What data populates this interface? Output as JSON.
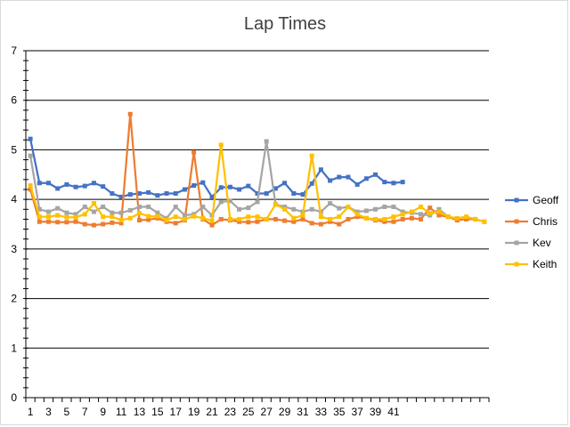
{
  "chart_data": {
    "type": "line",
    "title": "Lap Times",
    "xlabel": "",
    "ylabel": "",
    "ylim": [
      0,
      7
    ],
    "y_ticks": [
      0,
      1,
      2,
      3,
      4,
      5,
      6,
      7
    ],
    "x_range": [
      1,
      51
    ],
    "x_tick_labels": [
      1,
      3,
      5,
      7,
      9,
      11,
      13,
      15,
      17,
      19,
      21,
      23,
      25,
      27,
      29,
      31,
      33,
      35,
      37,
      39,
      41
    ],
    "grid": "horizontal",
    "legend_position": "right",
    "series": [
      {
        "name": "Geoff",
        "color": "#4472C4",
        "marker": "square",
        "x": [
          1,
          2,
          3,
          4,
          5,
          6,
          7,
          8,
          9,
          10,
          11,
          12,
          13,
          14,
          15,
          16,
          17,
          18,
          19,
          20,
          21,
          22,
          23,
          24,
          25,
          26,
          27,
          28,
          29,
          30,
          31,
          32,
          33,
          34,
          35,
          36,
          37,
          38,
          39,
          40,
          41,
          42
        ],
        "values": [
          5.22,
          4.33,
          4.33,
          4.22,
          4.3,
          4.25,
          4.27,
          4.33,
          4.26,
          4.12,
          4.05,
          4.1,
          4.12,
          4.14,
          4.08,
          4.12,
          4.12,
          4.2,
          4.28,
          4.34,
          4.05,
          4.24,
          4.25,
          4.2,
          4.27,
          4.12,
          4.12,
          4.22,
          4.33,
          4.12,
          4.1,
          4.32,
          4.6,
          4.38,
          4.45,
          4.45,
          4.3,
          4.42,
          4.5,
          4.35,
          4.33,
          4.35
        ]
      },
      {
        "name": "Chris",
        "color": "#ED7D31",
        "marker": "square",
        "x": [
          1,
          2,
          3,
          4,
          5,
          6,
          7,
          8,
          9,
          10,
          11,
          12,
          13,
          14,
          15,
          16,
          17,
          18,
          19,
          20,
          21,
          22,
          23,
          24,
          25,
          26,
          27,
          28,
          29,
          30,
          31,
          32,
          33,
          34,
          35,
          36,
          37,
          38,
          39,
          40,
          41,
          42,
          43,
          44,
          45,
          46,
          47,
          48,
          49,
          50,
          51
        ],
        "values": [
          4.2,
          3.55,
          3.55,
          3.54,
          3.54,
          3.55,
          3.5,
          3.48,
          3.5,
          3.53,
          3.52,
          5.72,
          3.58,
          3.59,
          3.62,
          3.55,
          3.52,
          3.58,
          4.95,
          3.6,
          3.48,
          3.6,
          3.58,
          3.55,
          3.54,
          3.55,
          3.6,
          3.6,
          3.57,
          3.55,
          3.6,
          3.52,
          3.5,
          3.55,
          3.5,
          3.6,
          3.65,
          3.62,
          3.58,
          3.55,
          3.55,
          3.6,
          3.62,
          3.6,
          3.83,
          3.68,
          3.65,
          3.58,
          3.6,
          3.6,
          3.55
        ]
      },
      {
        "name": "Kev",
        "color": "#A5A5A5",
        "marker": "square",
        "x": [
          1,
          2,
          3,
          4,
          5,
          6,
          7,
          8,
          9,
          10,
          11,
          12,
          13,
          14,
          15,
          16,
          17,
          18,
          19,
          20,
          21,
          22,
          23,
          24,
          25,
          26,
          27,
          28,
          29,
          30,
          31,
          32,
          33,
          34,
          35,
          36,
          37,
          38,
          39,
          40,
          41,
          42,
          43,
          44,
          45,
          46,
          47
        ],
        "values": [
          4.88,
          3.8,
          3.75,
          3.82,
          3.73,
          3.7,
          3.85,
          3.75,
          3.85,
          3.73,
          3.73,
          3.78,
          3.85,
          3.85,
          3.73,
          3.62,
          3.85,
          3.68,
          3.7,
          3.85,
          3.68,
          3.95,
          3.97,
          3.8,
          3.83,
          3.95,
          5.17,
          3.9,
          3.85,
          3.8,
          3.75,
          3.8,
          3.75,
          3.92,
          3.82,
          3.85,
          3.75,
          3.77,
          3.8,
          3.85,
          3.85,
          3.75,
          3.73,
          3.7,
          3.68,
          3.8,
          3.65
        ]
      },
      {
        "name": "Keith",
        "color": "#FFC000",
        "marker": "square",
        "x": [
          1,
          2,
          3,
          4,
          5,
          6,
          7,
          8,
          9,
          10,
          11,
          12,
          13,
          14,
          15,
          16,
          17,
          18,
          19,
          20,
          21,
          22,
          23,
          24,
          25,
          26,
          27,
          28,
          29,
          30,
          31,
          32,
          33,
          34,
          35,
          36,
          37,
          38,
          39,
          40,
          41,
          42,
          43,
          44,
          45,
          46,
          47,
          48,
          49,
          50,
          51
        ],
        "values": [
          4.28,
          3.65,
          3.65,
          3.68,
          3.64,
          3.64,
          3.7,
          3.92,
          3.65,
          3.65,
          3.58,
          3.62,
          3.72,
          3.66,
          3.66,
          3.58,
          3.65,
          3.6,
          3.66,
          3.62,
          3.57,
          5.1,
          3.6,
          3.6,
          3.65,
          3.65,
          3.6,
          3.9,
          3.8,
          3.62,
          3.68,
          4.88,
          3.65,
          3.6,
          3.65,
          3.85,
          3.7,
          3.62,
          3.6,
          3.6,
          3.65,
          3.7,
          3.75,
          3.85,
          3.72,
          3.75,
          3.65,
          3.62,
          3.65,
          3.6,
          3.55
        ]
      }
    ]
  }
}
